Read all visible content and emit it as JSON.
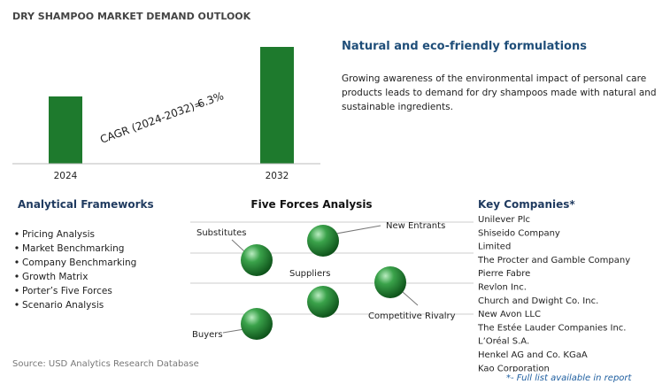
{
  "header": {
    "title": "DRY SHAMPOO MARKET DEMAND OUTLOOK"
  },
  "market_chart": {
    "categories": [
      "2024",
      "2032"
    ],
    "cagr_label": "CAGR (2024-2032)=",
    "cagr_value": "6.3%"
  },
  "highlight": {
    "title": "Natural and eco-friendly formulations",
    "lines": [
      "Growing awareness of the environmental impact of personal care",
      "products leads to demand for dry shampoos made with natural and",
      "sustainable ingredients."
    ]
  },
  "frameworks": {
    "title": "Analytical Frameworks",
    "items": [
      "Pricing Analysis",
      "Market Benchmarking",
      "Company Benchmarking",
      "Growth Matrix",
      "Porter’s Five Forces",
      "Scenario Analysis"
    ]
  },
  "five_forces": {
    "title": "Five Forces Analysis",
    "labels": [
      "Substitutes",
      "New Entrants",
      "Suppliers",
      "Competitive Rivalry",
      "Buyers"
    ]
  },
  "companies": {
    "title": "Key Companies*",
    "items": [
      "Unilever Plc",
      "Shiseido Company",
      "Limited",
      "The Procter and Gamble Company",
      "Pierre Fabre",
      "Revlon Inc.",
      "Church and Dwight Co. Inc.",
      "New Avon LLC",
      "The Estée Lauder Companies Inc.",
      "L’Oréal S.A.",
      "Henkel AG and Co. KGaA",
      "Kao Corporation"
    ],
    "note": "*- Full list available in report"
  },
  "footer": {
    "source": "Source: USD Analytics Research Database"
  }
}
